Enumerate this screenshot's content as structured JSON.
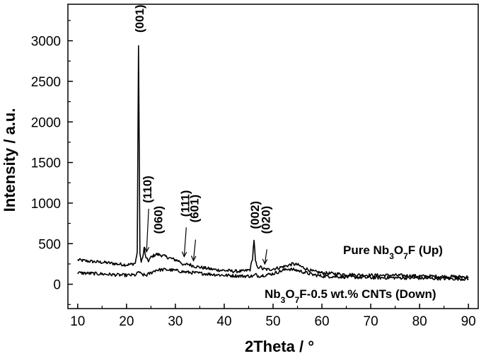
{
  "chart_data": {
    "type": "line",
    "title": "",
    "xlabel": "2Theta / °",
    "ylabel": "Intensity / a.u.",
    "xlim": [
      8,
      92
    ],
    "ylim": [
      -300,
      3450
    ],
    "xticks": [
      10,
      20,
      30,
      40,
      50,
      60,
      70,
      80,
      90
    ],
    "yticks": [
      0,
      500,
      1000,
      1500,
      2000,
      2500,
      3000
    ],
    "grid": false,
    "series": [
      {
        "label_parts": [
          {
            "t": "Pure Nb",
            "sub": false
          },
          {
            "t": "3",
            "sub": true
          },
          {
            "t": "O",
            "sub": false
          },
          {
            "t": "7",
            "sub": true
          },
          {
            "t": "F (Up)",
            "sub": false
          }
        ],
        "x": [
          10,
          12,
          14,
          16,
          18,
          20,
          21,
          21.8,
          22.2,
          22.45,
          22.6,
          22.75,
          23,
          23.3,
          23.6,
          23.8,
          24.1,
          24.5,
          25,
          26,
          27,
          28,
          29,
          30,
          31,
          31.8,
          32.5,
          34,
          36,
          38,
          40,
          42,
          44,
          45.3,
          45.8,
          46.1,
          46.4,
          46.8,
          47.3,
          47.8,
          49,
          51,
          53,
          54,
          55,
          56,
          58,
          60,
          65,
          70,
          75,
          80,
          85,
          90
        ],
        "y": [
          300,
          285,
          275,
          265,
          250,
          240,
          245,
          260,
          400,
          2950,
          1700,
          360,
          290,
          320,
          440,
          370,
          310,
          290,
          330,
          370,
          360,
          340,
          320,
          300,
          280,
          230,
          250,
          220,
          200,
          180,
          170,
          160,
          160,
          180,
          320,
          550,
          280,
          200,
          220,
          190,
          180,
          200,
          230,
          250,
          240,
          210,
          160,
          140,
          120,
          110,
          110,
          100,
          95,
          90
        ]
      },
      {
        "label_parts": [
          {
            "t": "Nb",
            "sub": false
          },
          {
            "t": "3",
            "sub": true
          },
          {
            "t": "O",
            "sub": false
          },
          {
            "t": "7",
            "sub": true
          },
          {
            "t": "F-0.5 wt.% CNTs (Down)",
            "sub": false
          }
        ],
        "x": [
          10,
          14,
          18,
          20,
          22,
          22.5,
          23,
          24,
          25,
          26,
          28,
          30,
          32,
          34,
          36,
          40,
          44,
          46,
          46.4,
          47,
          50,
          53,
          55,
          58,
          60,
          65,
          70,
          75,
          80,
          85,
          90
        ],
        "y": [
          140,
          130,
          115,
          110,
          115,
          160,
          120,
          110,
          140,
          175,
          180,
          170,
          150,
          140,
          130,
          110,
          100,
          100,
          120,
          100,
          130,
          190,
          170,
          120,
          100,
          90,
          80,
          80,
          75,
          70,
          65
        ]
      }
    ],
    "annotations": [
      {
        "text": "(001)",
        "x": 22.45,
        "label_y": 3100,
        "arrow": false
      },
      {
        "text": "(110)",
        "x": 24.1,
        "label_y": 1000,
        "arrow": true,
        "arrow_from": 930,
        "arrow_to": 400
      },
      {
        "text": "(060)",
        "x": 26.3,
        "label_y": 620,
        "arrow": false
      },
      {
        "text": "(111)",
        "x": 31.8,
        "label_y": 830,
        "arrow": true,
        "arrow_from": 700,
        "arrow_to": 340
      },
      {
        "text": "(601)",
        "x": 33.7,
        "label_y": 760,
        "arrow": true,
        "arrow_from": 550,
        "arrow_to": 290
      },
      {
        "text": "(002)",
        "x": 46.1,
        "label_y": 680,
        "arrow": false
      },
      {
        "text": "(020)",
        "x": 48.3,
        "label_y": 620,
        "arrow": true,
        "arrow_from": 430,
        "arrow_to": 250
      }
    ]
  }
}
